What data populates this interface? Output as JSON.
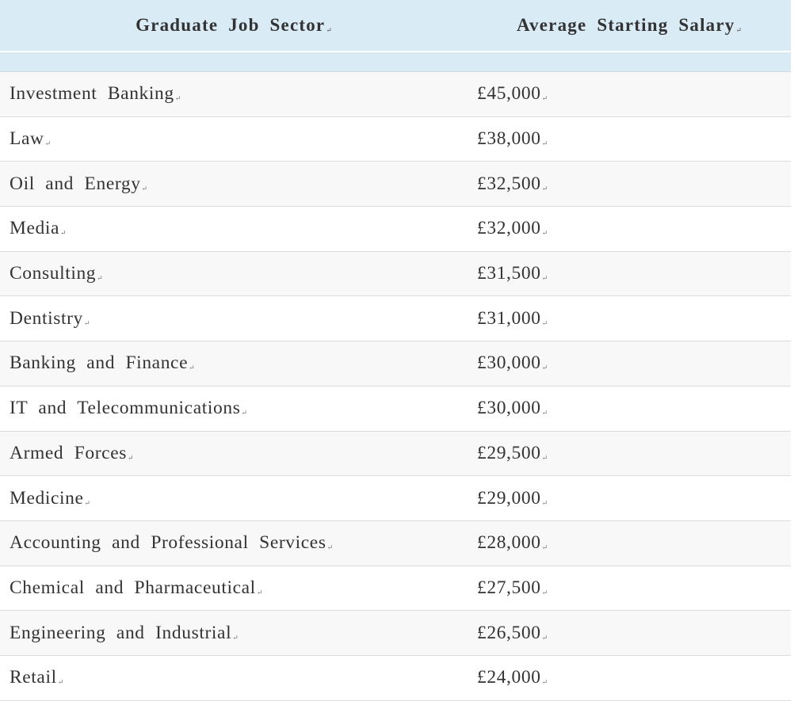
{
  "table": {
    "headers": [
      "Graduate Job Sector",
      "Average Starting Salary"
    ],
    "rows": [
      [
        "Investment Banking",
        "£45,000"
      ],
      [
        "Law",
        "£38,000"
      ],
      [
        "Oil and Energy",
        "£32,500"
      ],
      [
        "Media",
        "£32,000"
      ],
      [
        "Consulting",
        "£31,500"
      ],
      [
        "Dentistry",
        "£31,000"
      ],
      [
        "Banking and Finance",
        "£30,000"
      ],
      [
        "IT and Telecommunications",
        "£30,000"
      ],
      [
        "Armed Forces",
        "£29,500"
      ],
      [
        "Medicine",
        "£29,000"
      ],
      [
        "Accounting and Professional Services",
        "£28,000"
      ],
      [
        "Chemical and Pharmaceutical",
        "£27,500"
      ],
      [
        "Engineering and Industrial",
        "£26,500"
      ],
      [
        "Retail",
        "£24,000"
      ]
    ],
    "colors": {
      "header_bg": "#d9ecf5",
      "stripe_bg": "#f8f8f8"
    }
  }
}
